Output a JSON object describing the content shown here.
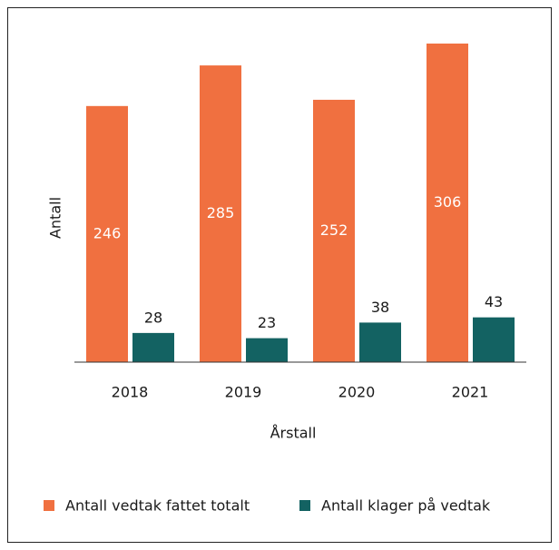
{
  "chart_data": {
    "type": "bar",
    "categories": [
      "2018",
      "2019",
      "2020",
      "2021"
    ],
    "series": [
      {
        "name": "Antall vedtak fattet totalt",
        "color": "#f07040",
        "values": [
          246,
          285,
          252,
          306
        ]
      },
      {
        "name": "Antall klager på vedtak",
        "color": "#136262",
        "values": [
          28,
          23,
          38,
          43
        ]
      }
    ],
    "xlabel": "Årstall",
    "ylabel": "Antall",
    "legend": "bottom",
    "grid": false
  }
}
